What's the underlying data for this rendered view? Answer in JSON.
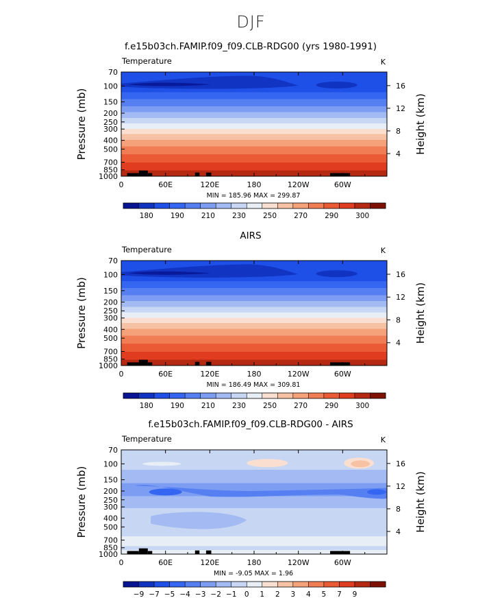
{
  "figure": {
    "season": "DJF",
    "variable_label": "Temperature",
    "units_label": "K"
  },
  "chart_data": [
    {
      "type": "heatmap",
      "title": "f.e15b03ch.FAMIP.f09_f09.CLB-RDG00 (yrs 1980-1991)",
      "subtitle": "Temperature",
      "units": "K",
      "ylabel": "Pressure (mb)",
      "ylabel_right": "Height (km)",
      "xlabel": "",
      "x_ticks": [
        {
          "lon": 0,
          "label": "0"
        },
        {
          "lon": 60,
          "label": "60E"
        },
        {
          "lon": 120,
          "label": "120E"
        },
        {
          "lon": 180,
          "label": "180"
        },
        {
          "lon": 240,
          "label": "120W"
        },
        {
          "lon": 300,
          "label": "60W"
        }
      ],
      "y_ticks": [
        {
          "p": 70,
          "label": "70"
        },
        {
          "p": 100,
          "label": "100"
        },
        {
          "p": 150,
          "label": "150"
        },
        {
          "p": 200,
          "label": "200"
        },
        {
          "p": 250,
          "label": "250"
        },
        {
          "p": 300,
          "label": "300"
        },
        {
          "p": 400,
          "label": "400"
        },
        {
          "p": 500,
          "label": "500"
        },
        {
          "p": 700,
          "label": "700"
        },
        {
          "p": 850,
          "label": "850"
        },
        {
          "p": 1000,
          "label": "1000"
        }
      ],
      "height_ticks": [
        {
          "km": 4,
          "label": "4"
        },
        {
          "km": 8,
          "label": "8"
        },
        {
          "km": 12,
          "label": "12"
        },
        {
          "km": 16,
          "label": "16"
        }
      ],
      "xlim": [
        0,
        360
      ],
      "ylim": [
        1000,
        70
      ],
      "stats": {
        "min": 185.96,
        "max": 299.87
      },
      "stats_label": "MIN = 185.96   MAX = 299.87",
      "colorbar": {
        "colors": [
          "#071592",
          "#1133c1",
          "#1e4fe6",
          "#3466f2",
          "#5680f2",
          "#7c9df2",
          "#a3bbf2",
          "#c6d6f3",
          "#e7eef5",
          "#fadfd0",
          "#f7c2a4",
          "#f5a17a",
          "#f17d55",
          "#ea5a34",
          "#e03c1f",
          "#b52812",
          "#7e1004"
        ],
        "labels": [
          {
            "slot": 1,
            "text": "180"
          },
          {
            "slot": 3,
            "text": "190"
          },
          {
            "slot": 5,
            "text": "210"
          },
          {
            "slot": 7,
            "text": "230"
          },
          {
            "slot": 9,
            "text": "250"
          },
          {
            "slot": 11,
            "text": "270"
          },
          {
            "slot": 13,
            "text": "290"
          },
          {
            "slot": 15,
            "text": "300"
          }
        ]
      }
    },
    {
      "type": "heatmap",
      "title": "AIRS",
      "subtitle": "Temperature",
      "units": "K",
      "ylabel": "Pressure (mb)",
      "ylabel_right": "Height (km)",
      "xlabel": "",
      "x_ticks": [
        {
          "lon": 0,
          "label": "0"
        },
        {
          "lon": 60,
          "label": "60E"
        },
        {
          "lon": 120,
          "label": "120E"
        },
        {
          "lon": 180,
          "label": "180"
        },
        {
          "lon": 240,
          "label": "120W"
        },
        {
          "lon": 300,
          "label": "60W"
        }
      ],
      "y_ticks": [
        {
          "p": 70,
          "label": "70"
        },
        {
          "p": 100,
          "label": "100"
        },
        {
          "p": 150,
          "label": "150"
        },
        {
          "p": 200,
          "label": "200"
        },
        {
          "p": 250,
          "label": "250"
        },
        {
          "p": 300,
          "label": "300"
        },
        {
          "p": 400,
          "label": "400"
        },
        {
          "p": 500,
          "label": "500"
        },
        {
          "p": 700,
          "label": "700"
        },
        {
          "p": 850,
          "label": "850"
        },
        {
          "p": 1000,
          "label": "1000"
        }
      ],
      "height_ticks": [
        {
          "km": 4,
          "label": "4"
        },
        {
          "km": 8,
          "label": "8"
        },
        {
          "km": 12,
          "label": "12"
        },
        {
          "km": 16,
          "label": "16"
        }
      ],
      "xlim": [
        0,
        360
      ],
      "ylim": [
        1000,
        70
      ],
      "stats": {
        "min": 186.49,
        "max": 309.81
      },
      "stats_label": "MIN = 186.49   MAX = 309.81",
      "colorbar": {
        "colors": [
          "#071592",
          "#1133c1",
          "#1e4fe6",
          "#3466f2",
          "#5680f2",
          "#7c9df2",
          "#a3bbf2",
          "#c6d6f3",
          "#e7eef5",
          "#fadfd0",
          "#f7c2a4",
          "#f5a17a",
          "#f17d55",
          "#ea5a34",
          "#e03c1f",
          "#b52812",
          "#7e1004"
        ],
        "labels": [
          {
            "slot": 1,
            "text": "180"
          },
          {
            "slot": 3,
            "text": "190"
          },
          {
            "slot": 5,
            "text": "210"
          },
          {
            "slot": 7,
            "text": "230"
          },
          {
            "slot": 9,
            "text": "250"
          },
          {
            "slot": 11,
            "text": "270"
          },
          {
            "slot": 13,
            "text": "290"
          },
          {
            "slot": 15,
            "text": "300"
          }
        ]
      }
    },
    {
      "type": "heatmap",
      "title": "f.e15b03ch.FAMIP.f09_f09.CLB-RDG00 - AIRS",
      "subtitle": "Temperature",
      "units": "K",
      "ylabel": "Pressure (mb)",
      "ylabel_right": "Height (km)",
      "xlabel": "",
      "x_ticks": [
        {
          "lon": 0,
          "label": "0"
        },
        {
          "lon": 60,
          "label": "60E"
        },
        {
          "lon": 120,
          "label": "120E"
        },
        {
          "lon": 180,
          "label": "180"
        },
        {
          "lon": 240,
          "label": "120W"
        },
        {
          "lon": 300,
          "label": "60W"
        }
      ],
      "y_ticks": [
        {
          "p": 70,
          "label": "70"
        },
        {
          "p": 100,
          "label": "100"
        },
        {
          "p": 150,
          "label": "150"
        },
        {
          "p": 200,
          "label": "200"
        },
        {
          "p": 250,
          "label": "250"
        },
        {
          "p": 300,
          "label": "300"
        },
        {
          "p": 400,
          "label": "400"
        },
        {
          "p": 500,
          "label": "500"
        },
        {
          "p": 700,
          "label": "700"
        },
        {
          "p": 850,
          "label": "850"
        },
        {
          "p": 1000,
          "label": "1000"
        }
      ],
      "height_ticks": [
        {
          "km": 4,
          "label": "4"
        },
        {
          "km": 8,
          "label": "8"
        },
        {
          "km": 12,
          "label": "12"
        },
        {
          "km": 16,
          "label": "16"
        }
      ],
      "xlim": [
        0,
        360
      ],
      "ylim": [
        1000,
        70
      ],
      "stats": {
        "min": -9.05,
        "max": 1.96
      },
      "stats_label": "MIN =  -9.05   MAX =   1.96",
      "colorbar": {
        "colors": [
          "#071592",
          "#1133c1",
          "#1e4fe6",
          "#3466f2",
          "#5680f2",
          "#7c9df2",
          "#a3bbf2",
          "#c6d6f3",
          "#e7eef5",
          "#fadfd0",
          "#f7c2a4",
          "#f5a17a",
          "#f17d55",
          "#ea5a34",
          "#e03c1f",
          "#b52812",
          "#7e1004"
        ],
        "labels": [
          {
            "slot": 1,
            "text": "−9"
          },
          {
            "slot": 2,
            "text": "−7"
          },
          {
            "slot": 3,
            "text": "−5"
          },
          {
            "slot": 4,
            "text": "−4"
          },
          {
            "slot": 5,
            "text": "−3"
          },
          {
            "slot": 6,
            "text": "−2"
          },
          {
            "slot": 7,
            "text": "−1"
          },
          {
            "slot": 8,
            "text": "0"
          },
          {
            "slot": 9,
            "text": "1"
          },
          {
            "slot": 10,
            "text": "2"
          },
          {
            "slot": 11,
            "text": "3"
          },
          {
            "slot": 12,
            "text": "4"
          },
          {
            "slot": 13,
            "text": "5"
          },
          {
            "slot": 14,
            "text": "7"
          },
          {
            "slot": 15,
            "text": "9"
          }
        ]
      }
    }
  ]
}
